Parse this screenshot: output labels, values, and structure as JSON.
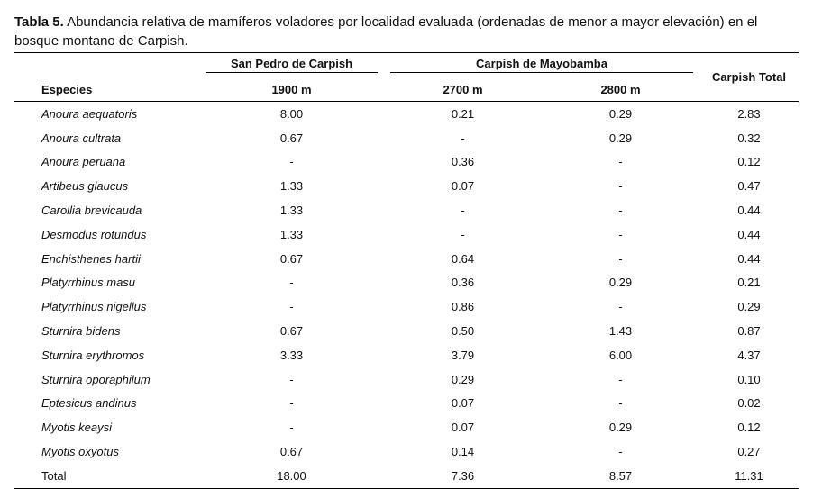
{
  "caption": {
    "label": "Tabla 5.",
    "text": " Abundancia relativa de mamíferos voladores por localidad evaluada (ordenadas de menor a mayor elevación) en el bosque montano de Carpish."
  },
  "headers": {
    "group1": "San Pedro de Carpish",
    "group2": "Carpish de Mayobamba",
    "total": "Carpish Total",
    "species": "Especies",
    "col1": "1900 m",
    "col2": "2700 m",
    "col3": "2800 m"
  },
  "rows": [
    {
      "species": "Anoura aequatoris",
      "v1": "8.00",
      "v2": "0.21",
      "v3": "0.29",
      "total": "2.83"
    },
    {
      "species": "Anoura cultrata",
      "v1": "0.67",
      "v2": "-",
      "v3": "0.29",
      "total": "0.32"
    },
    {
      "species": "Anoura peruana",
      "v1": "-",
      "v2": "0.36",
      "v3": "-",
      "total": "0.12"
    },
    {
      "species": "Artibeus glaucus",
      "v1": "1.33",
      "v2": "0.07",
      "v3": "-",
      "total": "0.47"
    },
    {
      "species": "Carollia brevicauda",
      "v1": "1.33",
      "v2": "-",
      "v3": "-",
      "total": "0.44"
    },
    {
      "species": "Desmodus rotundus",
      "v1": "1.33",
      "v2": "-",
      "v3": "-",
      "total": "0.44"
    },
    {
      "species": "Enchisthenes hartii",
      "v1": "0.67",
      "v2": "0.64",
      "v3": "-",
      "total": "0.44"
    },
    {
      "species": "Platyrrhinus masu",
      "v1": "-",
      "v2": "0.36",
      "v3": "0.29",
      "total": "0.21"
    },
    {
      "species": "Platyrrhinus nigellus",
      "v1": "-",
      "v2": "0.86",
      "v3": "-",
      "total": "0.29"
    },
    {
      "species": "Sturnira bidens",
      "v1": "0.67",
      "v2": "0.50",
      "v3": "1.43",
      "total": "0.87"
    },
    {
      "species": "Sturnira erythromos",
      "v1": "3.33",
      "v2": "3.79",
      "v3": "6.00",
      "total": "4.37"
    },
    {
      "species": "Sturnira oporaphilum",
      "v1": "-",
      "v2": "0.29",
      "v3": "-",
      "total": "0.10"
    },
    {
      "species": "Eptesicus andinus",
      "v1": "-",
      "v2": "0.07",
      "v3": "-",
      "total": "0.02"
    },
    {
      "species": "Myotis keaysi",
      "v1": "-",
      "v2": "0.07",
      "v3": "0.29",
      "total": "0.12"
    },
    {
      "species": "Myotis oxyotus",
      "v1": "0.67",
      "v2": "0.14",
      "v3": "-",
      "total": "0.27"
    }
  ],
  "total_row": {
    "label": "Total",
    "v1": "18.00",
    "v2": "7.36",
    "v3": "8.57",
    "total": "11.31"
  }
}
